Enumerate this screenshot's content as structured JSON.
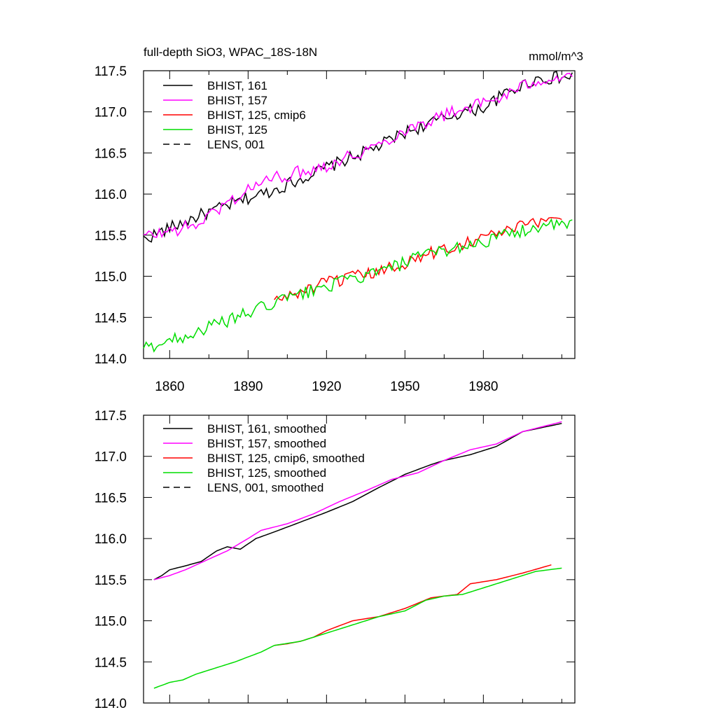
{
  "chart_data": [
    {
      "type": "line",
      "title": "full-depth SiO3, WPAC_18S-18N",
      "units": "mmol/m^3",
      "xlim": [
        1850,
        2015
      ],
      "ylim": [
        114.0,
        117.5
      ],
      "x_ticks": [
        1860,
        1890,
        1920,
        1950,
        1980
      ],
      "x_tick_labels_shown": true,
      "y_ticks": [
        114.0,
        114.5,
        115.0,
        115.5,
        116.0,
        116.5,
        117.0,
        117.5
      ],
      "y_tick_labels": [
        "114.0",
        "114.5",
        "115.0",
        "115.5",
        "116.0",
        "116.5",
        "117.0",
        "117.5"
      ],
      "grid": false,
      "legend_position": "top-left",
      "series": [
        {
          "name": "BHIST, 161",
          "color": "#000000",
          "dash": "solid",
          "start": 1850,
          "end": 2014,
          "y_start": 115.45,
          "y_end": 117.42,
          "path_points": [
            [
              1850,
              115.45
            ],
            [
              1870,
              115.72
            ],
            [
              1890,
              115.95
            ],
            [
              1900,
              116.05
            ],
            [
              1920,
              116.32
            ],
            [
              1940,
              116.58
            ],
            [
              1950,
              116.75
            ],
            [
              1970,
              116.98
            ],
            [
              1980,
              117.05
            ],
            [
              1990,
              117.25
            ],
            [
              2000,
              117.4
            ],
            [
              2014,
              117.42
            ]
          ]
        },
        {
          "name": "BHIST, 157",
          "color": "#ff00ff",
          "dash": "solid",
          "start": 1850,
          "end": 2014,
          "y_start": 115.48,
          "y_end": 117.45,
          "path_points": [
            [
              1850,
              115.48
            ],
            [
              1870,
              115.62
            ],
            [
              1880,
              115.85
            ],
            [
              1895,
              116.15
            ],
            [
              1920,
              116.35
            ],
            [
              1940,
              116.6
            ],
            [
              1950,
              116.78
            ],
            [
              1970,
              117.02
            ],
            [
              1985,
              117.15
            ],
            [
              2000,
              117.38
            ],
            [
              2014,
              117.45
            ]
          ]
        },
        {
          "name": "BHIST, 125, cmip6",
          "color": "#ff0000",
          "dash": "solid",
          "start": 1900,
          "end": 2010,
          "y_start": 114.7,
          "y_end": 115.75,
          "path_points": [
            [
              1900,
              114.7
            ],
            [
              1920,
              114.92
            ],
            [
              1940,
              115.05
            ],
            [
              1960,
              115.28
            ],
            [
              1980,
              115.48
            ],
            [
              2000,
              115.65
            ],
            [
              2010,
              115.75
            ]
          ]
        },
        {
          "name": "BHIST, 125",
          "color": "#00dd00",
          "dash": "solid",
          "start": 1850,
          "end": 2014,
          "y_start": 114.12,
          "y_end": 115.63,
          "path_points": [
            [
              1850,
              114.12
            ],
            [
              1870,
              114.32
            ],
            [
              1890,
              114.55
            ],
            [
              1900,
              114.68
            ],
            [
              1920,
              114.88
            ],
            [
              1940,
              115.05
            ],
            [
              1960,
              115.28
            ],
            [
              1980,
              115.42
            ],
            [
              2000,
              115.6
            ],
            [
              2014,
              115.63
            ]
          ]
        },
        {
          "name": "LENS, 001",
          "color": "#000000",
          "dash": "dashed",
          "start": null,
          "end": null,
          "y_start": null,
          "y_end": null,
          "path_points": []
        }
      ]
    },
    {
      "type": "line",
      "title": "",
      "units": "",
      "xlim": [
        1850,
        2015
      ],
      "ylim": [
        114.0,
        117.5
      ],
      "x_ticks": [
        1860,
        1890,
        1920,
        1950,
        1980
      ],
      "x_tick_labels_shown": false,
      "y_ticks": [
        114.0,
        114.5,
        115.0,
        115.5,
        116.0,
        116.5,
        117.0,
        117.5
      ],
      "y_tick_labels": [
        "114.0",
        "114.5",
        "115.0",
        "115.5",
        "116.0",
        "116.5",
        "117.0",
        "117.5"
      ],
      "grid": false,
      "legend_position": "top-left",
      "series": [
        {
          "name": "BHIST, 161, smoothed",
          "color": "#000000",
          "dash": "solid",
          "start": 1854,
          "end": 2010,
          "path_points": [
            [
              1854,
              115.5
            ],
            [
              1857,
              115.55
            ],
            [
              1860,
              115.62
            ],
            [
              1865,
              115.66
            ],
            [
              1872,
              115.72
            ],
            [
              1878,
              115.85
            ],
            [
              1882,
              115.9
            ],
            [
              1887,
              115.87
            ],
            [
              1893,
              116.0
            ],
            [
              1900,
              116.08
            ],
            [
              1910,
              116.2
            ],
            [
              1920,
              116.32
            ],
            [
              1930,
              116.45
            ],
            [
              1940,
              116.62
            ],
            [
              1950,
              116.78
            ],
            [
              1960,
              116.9
            ],
            [
              1965,
              116.95
            ],
            [
              1975,
              117.02
            ],
            [
              1985,
              117.12
            ],
            [
              1995,
              117.3
            ],
            [
              2010,
              117.4
            ]
          ]
        },
        {
          "name": "BHIST, 157, smoothed",
          "color": "#ff00ff",
          "dash": "solid",
          "start": 1854,
          "end": 2010,
          "path_points": [
            [
              1854,
              115.5
            ],
            [
              1860,
              115.55
            ],
            [
              1866,
              115.62
            ],
            [
              1875,
              115.75
            ],
            [
              1882,
              115.85
            ],
            [
              1890,
              116.0
            ],
            [
              1895,
              116.1
            ],
            [
              1905,
              116.18
            ],
            [
              1915,
              116.3
            ],
            [
              1925,
              116.45
            ],
            [
              1935,
              116.58
            ],
            [
              1945,
              116.72
            ],
            [
              1955,
              116.8
            ],
            [
              1965,
              116.95
            ],
            [
              1975,
              117.08
            ],
            [
              1985,
              117.15
            ],
            [
              1995,
              117.3
            ],
            [
              2010,
              117.42
            ]
          ]
        },
        {
          "name": "BHIST, 125, cmip6, smoothed",
          "color": "#ff0000",
          "dash": "solid",
          "start": 1900,
          "end": 2006,
          "path_points": [
            [
              1900,
              114.7
            ],
            [
              1905,
              114.72
            ],
            [
              1910,
              114.75
            ],
            [
              1915,
              114.8
            ],
            [
              1920,
              114.88
            ],
            [
              1930,
              115.0
            ],
            [
              1940,
              115.05
            ],
            [
              1950,
              115.15
            ],
            [
              1960,
              115.28
            ],
            [
              1970,
              115.32
            ],
            [
              1975,
              115.45
            ],
            [
              1985,
              115.5
            ],
            [
              1995,
              115.58
            ],
            [
              2006,
              115.68
            ]
          ]
        },
        {
          "name": "BHIST, 125, smoothed",
          "color": "#00dd00",
          "dash": "solid",
          "start": 1854,
          "end": 2010,
          "path_points": [
            [
              1854,
              114.18
            ],
            [
              1860,
              114.25
            ],
            [
              1865,
              114.28
            ],
            [
              1870,
              114.35
            ],
            [
              1880,
              114.45
            ],
            [
              1885,
              114.5
            ],
            [
              1895,
              114.62
            ],
            [
              1900,
              114.7
            ],
            [
              1910,
              114.75
            ],
            [
              1920,
              114.85
            ],
            [
              1930,
              114.95
            ],
            [
              1940,
              115.05
            ],
            [
              1950,
              115.12
            ],
            [
              1958,
              115.25
            ],
            [
              1965,
              115.3
            ],
            [
              1972,
              115.32
            ],
            [
              1980,
              115.4
            ],
            [
              1990,
              115.5
            ],
            [
              2000,
              115.6
            ],
            [
              2010,
              115.64
            ]
          ]
        },
        {
          "name": "LENS, 001, smoothed",
          "color": "#000000",
          "dash": "dashed",
          "start": null,
          "end": null,
          "path_points": []
        }
      ]
    }
  ]
}
